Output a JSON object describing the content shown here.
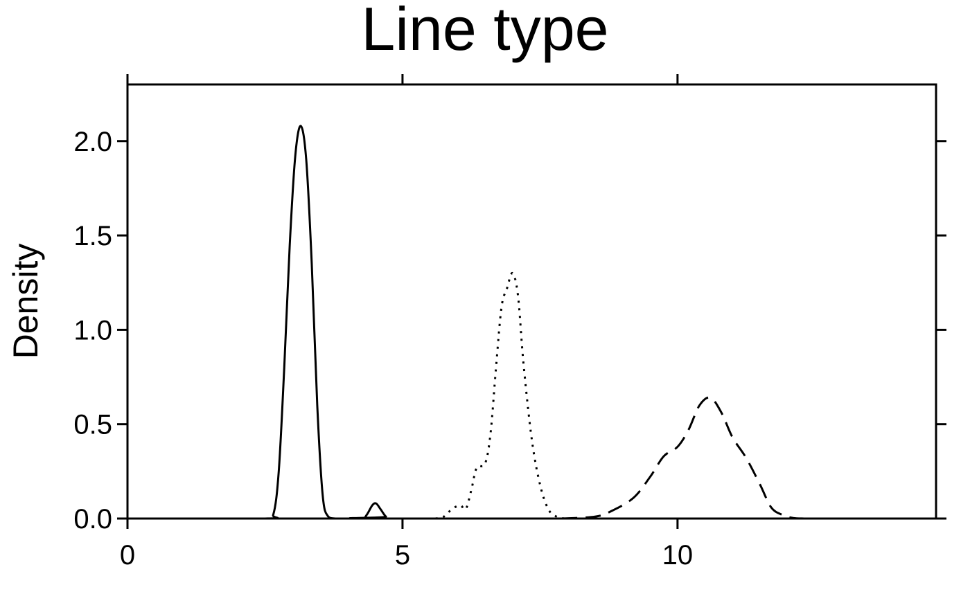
{
  "chart_data": {
    "type": "line",
    "title": "Line type",
    "xlabel": "",
    "ylabel": "Density",
    "xlim": [
      0,
      14.7
    ],
    "ylim": [
      0,
      2.3
    ],
    "x_ticks": [
      0,
      5,
      10
    ],
    "x_tick_labels": [
      "0",
      "5",
      "10"
    ],
    "y_ticks": [
      0,
      0.5,
      1,
      1.5,
      2
    ],
    "y_tick_labels": [
      "0.0",
      "0.5",
      "1.0",
      "1.5",
      "2.0"
    ],
    "grid": false,
    "legend": "none",
    "colors": {
      "line": "#000000",
      "axis": "#000000",
      "background": "#ffffff"
    },
    "series": [
      {
        "line_style": "solid",
        "points": [
          [
            0,
            0
          ],
          [
            2.5,
            0
          ],
          [
            2.65,
            0.02
          ],
          [
            2.75,
            0.25
          ],
          [
            2.85,
            0.8
          ],
          [
            2.95,
            1.45
          ],
          [
            3.05,
            1.92
          ],
          [
            3.15,
            2.08
          ],
          [
            3.25,
            1.9
          ],
          [
            3.35,
            1.35
          ],
          [
            3.45,
            0.6
          ],
          [
            3.55,
            0.12
          ],
          [
            3.65,
            0.01
          ],
          [
            3.8,
            0
          ],
          [
            4.25,
            0
          ],
          [
            4.35,
            0.02
          ],
          [
            4.45,
            0.07
          ],
          [
            4.52,
            0.08
          ],
          [
            4.6,
            0.05
          ],
          [
            4.7,
            0.01
          ],
          [
            4.8,
            0
          ],
          [
            14.7,
            0
          ]
        ]
      },
      {
        "line_style": "dotted",
        "points": [
          [
            5.6,
            0
          ],
          [
            5.75,
            0.01
          ],
          [
            5.9,
            0.05
          ],
          [
            6.05,
            0.07
          ],
          [
            6.15,
            0.05
          ],
          [
            6.25,
            0.15
          ],
          [
            6.35,
            0.27
          ],
          [
            6.5,
            0.29
          ],
          [
            6.6,
            0.45
          ],
          [
            6.7,
            0.8
          ],
          [
            6.8,
            1.12
          ],
          [
            6.9,
            1.22
          ],
          [
            7.0,
            1.3
          ],
          [
            7.1,
            1.18
          ],
          [
            7.2,
            0.82
          ],
          [
            7.35,
            0.42
          ],
          [
            7.5,
            0.18
          ],
          [
            7.65,
            0.05
          ],
          [
            7.8,
            0.01
          ],
          [
            7.95,
            0
          ]
        ]
      },
      {
        "line_style": "dashed",
        "points": [
          [
            7.9,
            0
          ],
          [
            8.5,
            0.01
          ],
          [
            8.8,
            0.04
          ],
          [
            9.2,
            0.11
          ],
          [
            9.5,
            0.22
          ],
          [
            9.75,
            0.33
          ],
          [
            10.0,
            0.38
          ],
          [
            10.2,
            0.47
          ],
          [
            10.4,
            0.6
          ],
          [
            10.6,
            0.64
          ],
          [
            10.8,
            0.56
          ],
          [
            11.0,
            0.43
          ],
          [
            11.25,
            0.32
          ],
          [
            11.5,
            0.18
          ],
          [
            11.7,
            0.06
          ],
          [
            11.9,
            0.02
          ],
          [
            12.1,
            0.003
          ],
          [
            12.3,
            0
          ]
        ]
      }
    ]
  }
}
